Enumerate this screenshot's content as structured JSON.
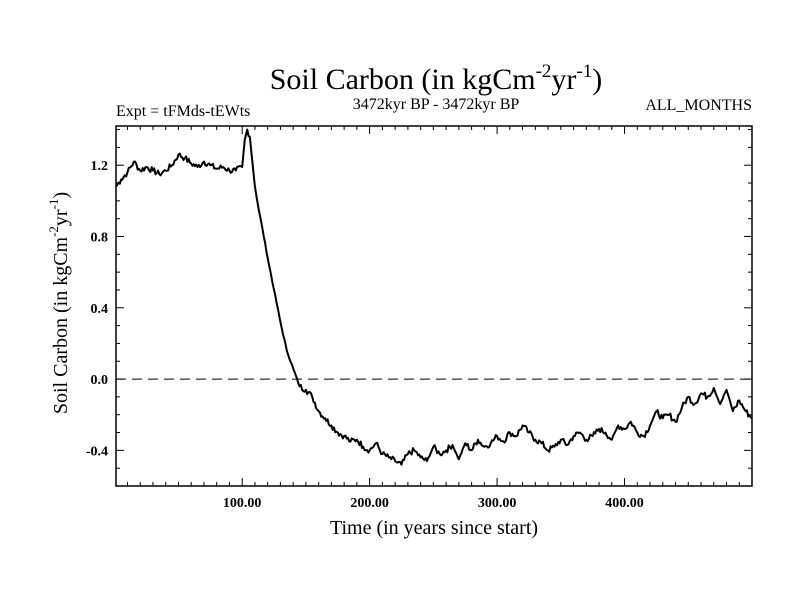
{
  "chart_data": {
    "type": "line",
    "title_main": "Soil Carbon (in kgCm",
    "title_sup1": "-2",
    "title_mid": "yr",
    "title_sup2": "-1",
    "title_close": ")",
    "subtitle_left": "Expt = tFMds-tEWts",
    "subtitle_center": "3472kyr BP - 3472kyr BP",
    "subtitle_right": "ALL_MONTHS",
    "xlabel": "Time (in years since start)",
    "ylabel_main": "Soil Carbon (in kgCm",
    "ylabel_sup1": "-2",
    "ylabel_mid": "yr",
    "ylabel_sup2": "-1",
    "ylabel_close": ")",
    "xlim": [
      1,
      500
    ],
    "ylim": [
      -0.6,
      1.42
    ],
    "x_ticks": [
      100,
      200,
      300,
      400
    ],
    "x_tick_labels": [
      "100.00",
      "200.00",
      "300.00",
      "400.00"
    ],
    "y_ticks": [
      -0.4,
      0.0,
      0.4,
      0.8,
      1.2
    ],
    "y_tick_labels": [
      "-0.4",
      "0.0",
      "0.4",
      "0.8",
      "1.2"
    ],
    "reference_line_y": 0.0,
    "series": [
      {
        "name": "Soil Carbon",
        "x": [
          1,
          5,
          10,
          15,
          20,
          25,
          30,
          35,
          40,
          45,
          50,
          55,
          60,
          65,
          70,
          75,
          80,
          85,
          90,
          95,
          100,
          102,
          104,
          106,
          108,
          110,
          113,
          116,
          120,
          125,
          130,
          135,
          140,
          145,
          150,
          155,
          160,
          165,
          170,
          175,
          180,
          185,
          190,
          195,
          200,
          205,
          210,
          215,
          220,
          225,
          230,
          235,
          240,
          245,
          250,
          255,
          260,
          265,
          270,
          275,
          280,
          285,
          290,
          295,
          300,
          305,
          310,
          315,
          320,
          325,
          330,
          335,
          340,
          345,
          350,
          355,
          360,
          365,
          370,
          375,
          380,
          385,
          390,
          395,
          400,
          405,
          410,
          415,
          420,
          425,
          430,
          435,
          440,
          445,
          450,
          455,
          460,
          465,
          470,
          475,
          480,
          485,
          490,
          495,
          500
        ],
        "y": [
          1.08,
          1.12,
          1.16,
          1.22,
          1.17,
          1.19,
          1.17,
          1.15,
          1.17,
          1.2,
          1.26,
          1.24,
          1.21,
          1.19,
          1.22,
          1.2,
          1.18,
          1.19,
          1.17,
          1.17,
          1.19,
          1.34,
          1.4,
          1.36,
          1.22,
          1.08,
          0.95,
          0.84,
          0.68,
          0.5,
          0.32,
          0.16,
          0.06,
          -0.04,
          -0.06,
          -0.1,
          -0.18,
          -0.22,
          -0.26,
          -0.3,
          -0.32,
          -0.35,
          -0.34,
          -0.38,
          -0.4,
          -0.36,
          -0.42,
          -0.44,
          -0.46,
          -0.48,
          -0.42,
          -0.4,
          -0.44,
          -0.46,
          -0.38,
          -0.42,
          -0.4,
          -0.37,
          -0.45,
          -0.36,
          -0.4,
          -0.34,
          -0.38,
          -0.36,
          -0.32,
          -0.35,
          -0.3,
          -0.32,
          -0.26,
          -0.3,
          -0.34,
          -0.36,
          -0.4,
          -0.38,
          -0.34,
          -0.37,
          -0.32,
          -0.3,
          -0.34,
          -0.32,
          -0.28,
          -0.3,
          -0.34,
          -0.26,
          -0.28,
          -0.24,
          -0.3,
          -0.32,
          -0.26,
          -0.18,
          -0.22,
          -0.2,
          -0.24,
          -0.16,
          -0.1,
          -0.14,
          -0.08,
          -0.1,
          -0.05,
          -0.14,
          -0.06,
          -0.18,
          -0.12,
          -0.18,
          -0.22
        ]
      }
    ]
  }
}
